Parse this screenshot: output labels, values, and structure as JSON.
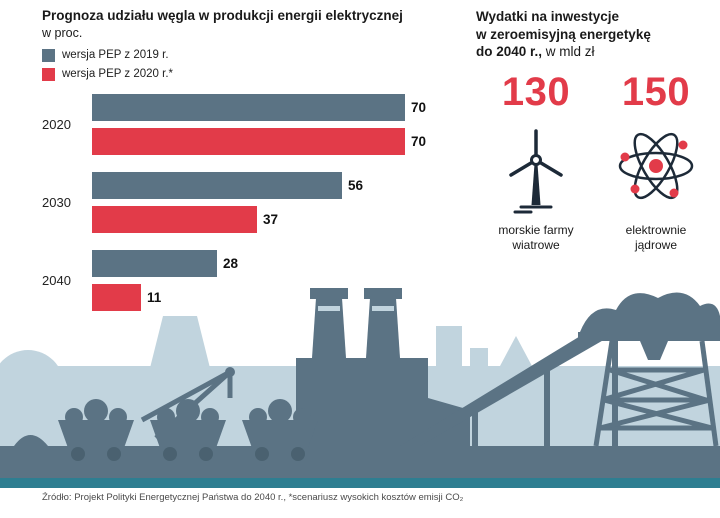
{
  "left": {
    "title": "Prognoza udziału węgla w produkcji energii elektrycznej",
    "subtitle": "w proc.",
    "legend": [
      {
        "label": "wersja PEP z 2019 r.",
        "color": "#5b7384"
      },
      {
        "label": "wersja PEP z 2020 r.*",
        "color": "#e23b49"
      }
    ]
  },
  "right": {
    "title_line1": "Wydatki na inwestycje",
    "title_line2": "w zeroemisyjną energetykę",
    "title_line3_bold": "do 2040 r.,",
    "title_line3_regular": " w mld zł",
    "accent_color": "#e23b49",
    "items": [
      {
        "value": "130",
        "label_line1": "morskie farmy",
        "label_line2": "wiatrowe",
        "icon": "wind-turbine-icon"
      },
      {
        "value": "150",
        "label_line1": "elektrownie",
        "label_line2": "jądrowe",
        "icon": "atom-icon"
      }
    ]
  },
  "chart_data": {
    "type": "bar",
    "orientation": "horizontal",
    "title": "Prognoza udziału węgla w produkcji energii elektrycznej",
    "unit": "proc.",
    "categories": [
      "2020",
      "2030",
      "2040"
    ],
    "series": [
      {
        "name": "wersja PEP z 2019 r.",
        "color": "#5b7384",
        "values": [
          70,
          56,
          28
        ]
      },
      {
        "name": "wersja PEP z 2020 r.*",
        "color": "#e23b49",
        "values": [
          70,
          37,
          11
        ]
      }
    ],
    "xlim": [
      0,
      70
    ],
    "value_labels": true,
    "legend_position": "top-left",
    "grid": false
  },
  "footer": {
    "accent_bar_color": "#2e7e91",
    "source": "Źródło: Projekt Polityki Energetycznej Państwa do 2040 r., *scenariusz wysokich kosztów emisji CO₂"
  },
  "illustration": {
    "light": "#c1d4de",
    "dark": "#5b7384",
    "darker": "#4a6170"
  }
}
